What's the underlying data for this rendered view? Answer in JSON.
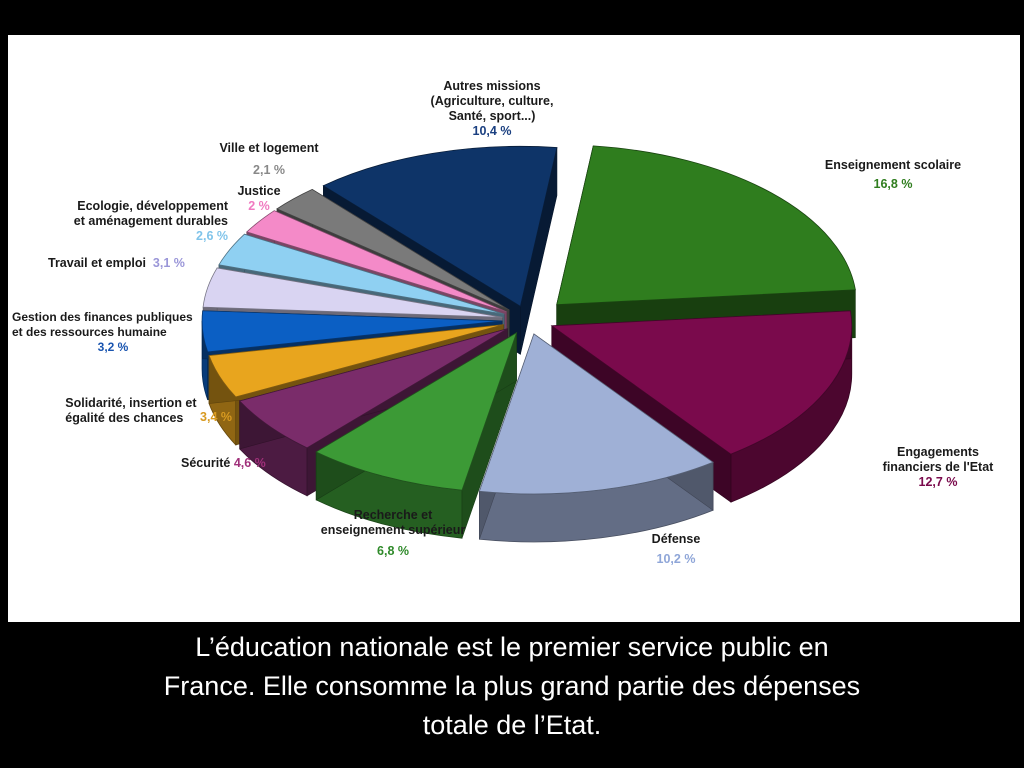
{
  "caption": {
    "line1": "L’éducation nationale est le premier service public en",
    "line2": "France.  Elle consomme la plus grand partie des dépenses",
    "line3": "totale de l’Etat."
  },
  "chart_data": {
    "type": "pie",
    "title": "",
    "slices": [
      {
        "name": "Enseignement scolaire",
        "pct_label": "16,8 %",
        "value": 16.8,
        "color": "#2f7d1e",
        "pct_color": "#2f7d1e"
      },
      {
        "name": "Engagements\nfinanciers de l'Etat",
        "pct_label": "12,7 %",
        "value": 12.7,
        "color": "#7a0a4c",
        "pct_color": "#7a0a4c"
      },
      {
        "name": "Défense",
        "pct_label": "10,2  %",
        "value": 10.2,
        "color": "#9fb0d6",
        "pct_color": "#8fa6d8"
      },
      {
        "name": "Recherche et\nenseignement supérieur",
        "pct_label": "6,8 %",
        "value": 6.8,
        "color": "#3c9a36",
        "pct_color": "#2f8a2a"
      },
      {
        "name": "Sécurité",
        "pct_label": "4,6 %",
        "value": 4.6,
        "color": "#7a2c6a",
        "pct_color": "#a0307a"
      },
      {
        "name": "Solidarité, insertion et\négalité des chances",
        "pct_label": "3,4 %",
        "value": 3.4,
        "color": "#e8a51e",
        "pct_color": "#d89a20"
      },
      {
        "name": "Gestion des finances publiques\net des ressources humaine",
        "pct_label": "3,2 %",
        "value": 3.2,
        "color": "#0b5fc4",
        "pct_color": "#1a55b0"
      },
      {
        "name": "Travail et emploi",
        "pct_label": "3,1 %",
        "value": 3.1,
        "color": "#d9d4f2",
        "pct_color": "#9a96d8"
      },
      {
        "name": "Ecologie, développement\net aménagement durables",
        "pct_label": "2,6 %",
        "value": 2.6,
        "color": "#8fd0f2",
        "pct_color": "#80c4ea"
      },
      {
        "name": "Justice",
        "pct_label": "2 %",
        "value": 2.0,
        "color": "#f48ac8",
        "pct_color": "#f07ac0"
      },
      {
        "name": "Ville et logement",
        "pct_label": "2,1 %",
        "value": 2.1,
        "color": "#7a7a7a",
        "pct_color": "#888888"
      },
      {
        "name": "Autres missions\n(Agriculture, culture,\nSanté, sport...)",
        "pct_label": "10,4 %",
        "value": 10.4,
        "color": "#0e3468",
        "pct_color": "#1a3f80"
      }
    ]
  }
}
